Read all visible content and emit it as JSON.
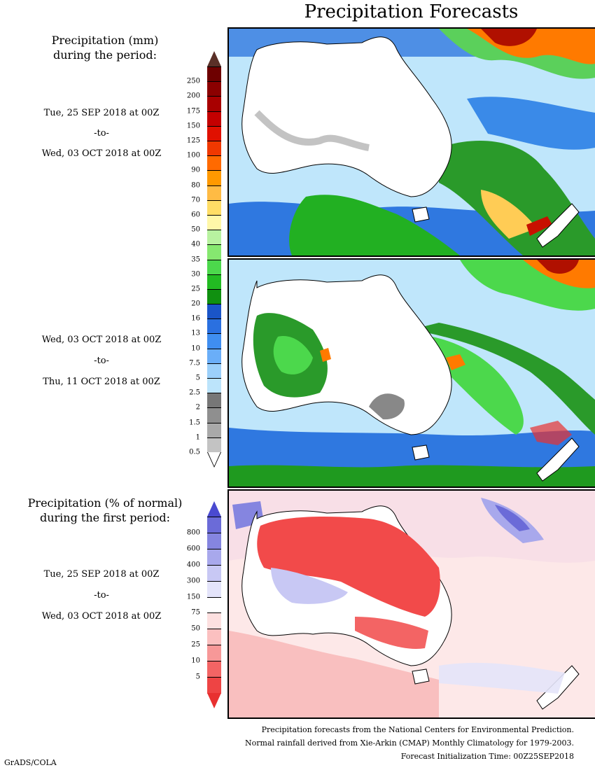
{
  "title": "Precipitation Forecasts",
  "amount_section": {
    "title_line1": "Precipitation (mm)",
    "title_line2": "during the period:",
    "period1": {
      "start": "Tue, 25 SEP 2018 at 00Z",
      "sep": "-to-",
      "end": "Wed, 03 OCT 2018 at 00Z"
    },
    "period2": {
      "start": "Wed, 03 OCT 2018 at 00Z",
      "sep": "-to-",
      "end": "Thu, 11 OCT 2018 at 00Z"
    },
    "legend_labels": [
      "250",
      "200",
      "175",
      "150",
      "125",
      "100",
      "90",
      "80",
      "70",
      "60",
      "50",
      "40",
      "35",
      "30",
      "25",
      "20",
      "16",
      "13",
      "10",
      "7.5",
      "5",
      "2.5",
      "2",
      "1.5",
      "1",
      "0.5"
    ],
    "legend_colors": [
      "#6e0000",
      "#8b0000",
      "#a80000",
      "#c40000",
      "#e01000",
      "#f03800",
      "#ff6a00",
      "#ff9900",
      "#ffbb44",
      "#ffdd66",
      "#fff7a8",
      "#b8f2a0",
      "#86e870",
      "#4cd84c",
      "#22bb22",
      "#109010",
      "#1a55c8",
      "#2a70e0",
      "#3f8ef0",
      "#6aaef8",
      "#9cd0fa",
      "#bce4fb",
      "#777777",
      "#8f8f8f",
      "#a9a9a9",
      "#c3c3c3"
    ],
    "legend_top_color": "#5a3028",
    "legend_bottom_color": "#ffffff"
  },
  "percent_section": {
    "title_line1": "Precipitation (% of normal)",
    "title_line2": "during the first period:",
    "period": {
      "start": "Tue, 25 SEP 2018 at 00Z",
      "sep": "-to-",
      "end": "Wed, 03 OCT 2018 at 00Z"
    },
    "legend_labels": [
      "800",
      "600",
      "400",
      "300",
      "150",
      "75",
      "50",
      "25",
      "10",
      "5"
    ],
    "legend_colors": [
      "#6b6bd8",
      "#8585e0",
      "#a8a8ec",
      "#c8c8f4",
      "#e4e4fa",
      "#ffffff",
      "#fde0e0",
      "#fbc0c0",
      "#f79898",
      "#f36464",
      "#ee4444"
    ],
    "legend_top_color": "#4a4ad0",
    "legend_bottom_color": "#e83030"
  },
  "footer": {
    "line1": "Precipitation forecasts from the National Centers for Environmental Prediction.",
    "line2": "Normal rainfall derived from Xie-Arkin (CMAP) Monthly Climatology for 1979-2003.",
    "line3": "Forecast Initialization Time: 00Z25SEP2018"
  },
  "credit": "GrADS/COLA"
}
